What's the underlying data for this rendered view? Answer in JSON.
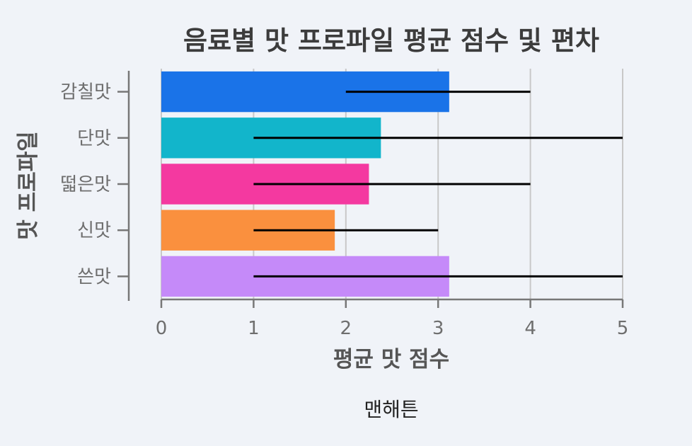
{
  "chart_data": {
    "type": "bar",
    "orientation": "horizontal",
    "title": "음료별 맛 프로파일 평균 점수 및 편차",
    "xlabel": "평균 맛 점수",
    "ylabel": "맛 프로파일",
    "xlim": [
      0,
      5
    ],
    "xticks": [
      "0",
      "1",
      "2",
      "3",
      "4",
      "5"
    ],
    "grid": true,
    "series_name": "맨해튼",
    "categories": [
      "감칠맛",
      "단맛",
      "떫은맛",
      "신맛",
      "쓴맛"
    ],
    "values": [
      3.12,
      2.38,
      2.25,
      1.88,
      3.12
    ],
    "error_low": [
      2,
      1,
      1,
      1,
      1
    ],
    "error_high": [
      4,
      5,
      4,
      3,
      5
    ],
    "colors": [
      "#1a73e8",
      "#12b5cb",
      "#f439a0",
      "#fa903e",
      "#c58af9"
    ]
  }
}
